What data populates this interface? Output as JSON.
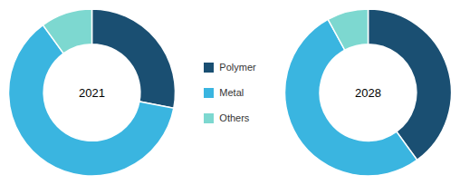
{
  "chart_data": [
    {
      "type": "pie",
      "title": "2021",
      "categories": [
        "Polymer",
        "Metal",
        "Others"
      ],
      "values": [
        28,
        62,
        10
      ],
      "colors": [
        "#1a4f72",
        "#3ab5e0",
        "#7dd8d0"
      ],
      "legend": "center"
    },
    {
      "type": "pie",
      "title": "2028",
      "categories": [
        "Polymer",
        "Metal",
        "Others"
      ],
      "values": [
        40,
        52,
        8
      ],
      "colors": [
        "#1a4f72",
        "#3ab5e0",
        "#7dd8d0"
      ]
    }
  ]
}
